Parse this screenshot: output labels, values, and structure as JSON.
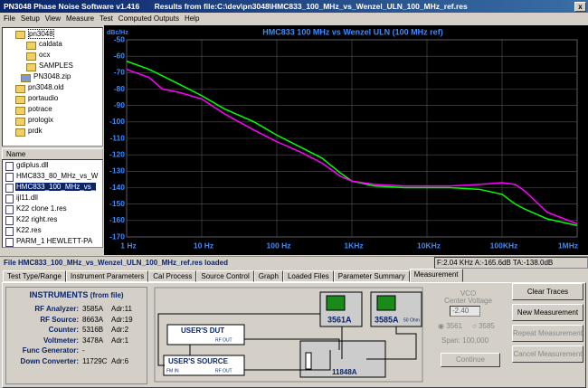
{
  "window": {
    "title": "PN3048 Phase Noise Software v1.416",
    "results": "Results from file:C:\\dev\\pn3048\\HMC833_100_MHz_vs_Wenzel_ULN_100_MHz_ref.res"
  },
  "menu": [
    "File",
    "Setup",
    "View",
    "Measure",
    "Test",
    "Computed Outputs",
    "Help"
  ],
  "folders": [
    "pn3048",
    "caldata",
    "ocx",
    "SAMPLES",
    "PN3048.zip",
    "pn3048.old",
    "portaudio",
    "potrace",
    "prologix",
    "prdk"
  ],
  "files_header": "Name",
  "files": [
    "gdiplus.dll",
    "HMC833_80_MHz_vs_W",
    "HMC833_100_MHz_vs_",
    "ijl11.dll",
    "K22 clone 1.res",
    "K22 right.res",
    "K22.res",
    "PARM_1 HEWLETT-PA"
  ],
  "chart_data": {
    "type": "line",
    "title": "HMC833 100 MHz vs Wenzel ULN (100 MHz ref)",
    "ylabel": "dBc/Hz",
    "log_x": true,
    "grid": true,
    "x": [
      1,
      2,
      3,
      5,
      10,
      20,
      50,
      100,
      200,
      400,
      700,
      1000,
      2000,
      5000,
      10000,
      20000,
      50000,
      100000,
      150000,
      200000,
      400000,
      1000000
    ],
    "series": [
      {
        "name": "HMC833 100 MHz",
        "color": "#00ff00",
        "values": [
          -63,
          -68,
          -72,
          -77,
          -84,
          -92,
          -100,
          -108,
          -115,
          -122,
          -131,
          -136,
          -139,
          -140,
          -140,
          -140,
          -141,
          -144,
          -150,
          -153,
          -159,
          -163
        ]
      },
      {
        "name": "Wenzel ULN",
        "color": "#ff00ff",
        "values": [
          -68,
          -73,
          -80,
          -82,
          -86,
          -95,
          -105,
          -112,
          -118,
          -125,
          -133,
          -136,
          -138,
          -139,
          -139,
          -139,
          -138,
          -137,
          -138,
          -142,
          -155,
          -162
        ]
      }
    ],
    "xlim": [
      1,
      1000000
    ],
    "xticks": [
      {
        "value": 1,
        "label": "1 Hz"
      },
      {
        "value": 10,
        "label": "10 Hz"
      },
      {
        "value": 100,
        "label": "100 Hz"
      },
      {
        "value": 1000,
        "label": "1KHz"
      },
      {
        "value": 10000,
        "label": "10KHz"
      },
      {
        "value": 100000,
        "label": "100KHz"
      },
      {
        "value": 1000000,
        "label": "1MHz"
      }
    ],
    "ylim": [
      -170,
      -50
    ],
    "yticks": [
      -50,
      -60,
      -70,
      -80,
      -90,
      -100,
      -110,
      -120,
      -130,
      -140,
      -150,
      -160,
      -170
    ]
  },
  "status": {
    "message": "File  HMC833_100_MHz_vs_Wenzel_ULN_100_MHz_ref.res loaded",
    "readout": "F:2.04 KHz  A:-165.6dB  TA:-138.0dB"
  },
  "tabs": [
    "Test Type/Range",
    "Instrument Parameters",
    "Cal Process",
    "Source Control",
    "Graph",
    "Loaded Files",
    "Parameter Summary",
    "Measurement"
  ],
  "instruments": {
    "title": "INSTRUMENTS",
    "subtitle": "(from file)",
    "rows": [
      [
        "RF Analyzer:",
        "3585A",
        "Adr:11"
      ],
      [
        "RF Source:",
        "8663A",
        "Adr:19"
      ],
      [
        "Counter:",
        "5316B",
        "Adr:2"
      ],
      [
        "Voltmeter:",
        "3478A",
        "Adr:1"
      ],
      [
        "Func Generator:",
        "-",
        ""
      ],
      [
        "Down Converter:",
        "11729C",
        "Adr:6"
      ]
    ]
  },
  "diagram": {
    "analyzer1": "3561A",
    "analyzer2": "3585A",
    "termination": "50 Ohm",
    "dut": "USER'S DUT",
    "dut_out": "RF OUT",
    "source": "USER'S SOURCE",
    "source_in": "FM IN",
    "source_out": "RF OUT",
    "converter": "11848A"
  },
  "vco": {
    "title": "VCO",
    "subtitle": "Center Voltage",
    "voltage": "-2.40",
    "radio1": "3561",
    "radio2": "3585",
    "span": "Span: 100,000",
    "continue": "Continue"
  },
  "buttons": [
    "Clear Traces",
    "New Measurement",
    "Repeat Measurement",
    "Cancel Measurement"
  ]
}
